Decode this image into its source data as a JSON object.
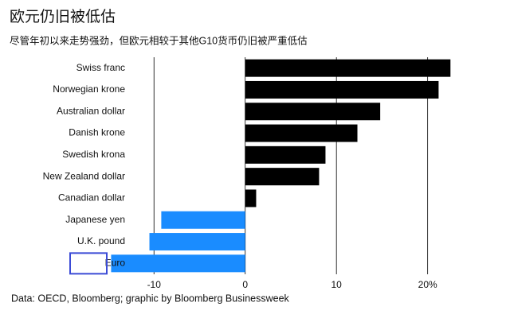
{
  "chart_data": {
    "type": "bar",
    "orientation": "horizontal",
    "title": "欧元仍旧被低估",
    "subtitle": "尽管年初以来走势强劲，但欧元相较于其他G10货币仍旧被严重低估",
    "source": "Data: OECD, Bloomberg; graphic by Bloomberg Businessweek",
    "categories": [
      "Swiss franc",
      "Norwegian krone",
      "Australian dollar",
      "Danish krone",
      "Swedish krona",
      "New Zealand dollar",
      "Canadian dollar",
      "Japanese yen",
      "U.K. pound",
      "Euro"
    ],
    "values": [
      22.5,
      21.2,
      14.8,
      12.3,
      8.8,
      8.1,
      1.2,
      -9.2,
      -10.5,
      -14.7
    ],
    "positive_color": "#000000",
    "negative_color": "#1a8cff",
    "highlight_color": "#3b4bd6",
    "highlighted_category": 9,
    "xlim": [
      -15,
      23
    ],
    "xticks": [
      -10,
      0,
      10,
      {
        "value": 20,
        "label": "20%"
      }
    ],
    "grid": true
  }
}
